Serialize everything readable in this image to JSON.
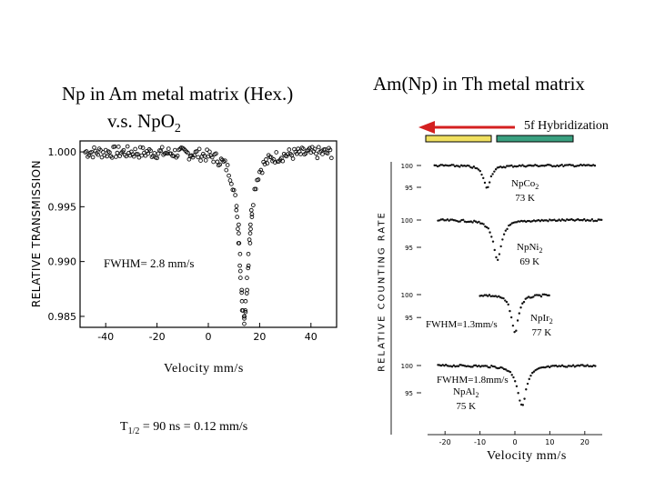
{
  "left_title_line1": "Np in Am metal matrix (Hex.)",
  "left_title_line2_main": "v.s. NpO",
  "left_title_line2_sub": "2",
  "right_title": "Am(Np) in Th metal matrix",
  "hybridization_label": "5f Hybridization",
  "fwhm_left": "FWHM= 2.8 mm/s",
  "velocity_left": "Velocity mm/s",
  "thalf_main": "T",
  "thalf_sub": "1/2",
  "thalf_rest": " = 90 ns = 0.12 mm/s",
  "velocity_right": "Velocity mm/s",
  "colors": {
    "arrow": "#d42020",
    "bar_yellow": "#f0e060",
    "bar_green": "#3aa080"
  },
  "chart_data": [
    {
      "type": "scatter",
      "ylabel": "RELATIVE TRANSMISSION",
      "xlabel": "Velocity mm/s",
      "xlim": [
        -50,
        50
      ],
      "ylim": [
        0.984,
        1.001
      ],
      "xticks": [
        "-40",
        "-20",
        "0",
        "20",
        "40"
      ],
      "yticks": [
        "1.000",
        "0.995",
        "0.990",
        "0.985"
      ],
      "min_velocity": 14,
      "min_transmission": 0.9848,
      "annotation": "FWHM= 2.8 mm/s"
    },
    {
      "type": "scatter",
      "ylabel": "RELATIVE COUNTING RATE",
      "xlabel": "Velocity mm/s",
      "xlim": [
        -25,
        25
      ],
      "xticks": [
        "-20",
        "-10",
        "0",
        "10",
        "20"
      ],
      "yticks": [
        "100",
        "95"
      ],
      "series": [
        {
          "name": "NpCo2",
          "label_main": "NpCo",
          "label_sub": "2",
          "temp": "73 K",
          "center": -8,
          "depth": 0.055,
          "width": 1.2
        },
        {
          "name": "NpNi2",
          "label_main": "NpNi",
          "label_sub": "2",
          "temp": "69 K",
          "center": -5,
          "depth": 0.08,
          "width": 1.4
        },
        {
          "name": "NpIr2",
          "label_main": "NpIr",
          "label_sub": "2",
          "temp": "77 K",
          "center": 0,
          "depth": 0.09,
          "width": 1.2,
          "annotation": "FWHM=1.3mm/s"
        },
        {
          "name": "NpAl2",
          "label_main": "NpAl",
          "label_sub": "2",
          "temp": "75 K",
          "center": 2,
          "depth": 0.08,
          "width": 1.5,
          "annotation": "FWHM=1.8mm/s"
        }
      ]
    }
  ]
}
